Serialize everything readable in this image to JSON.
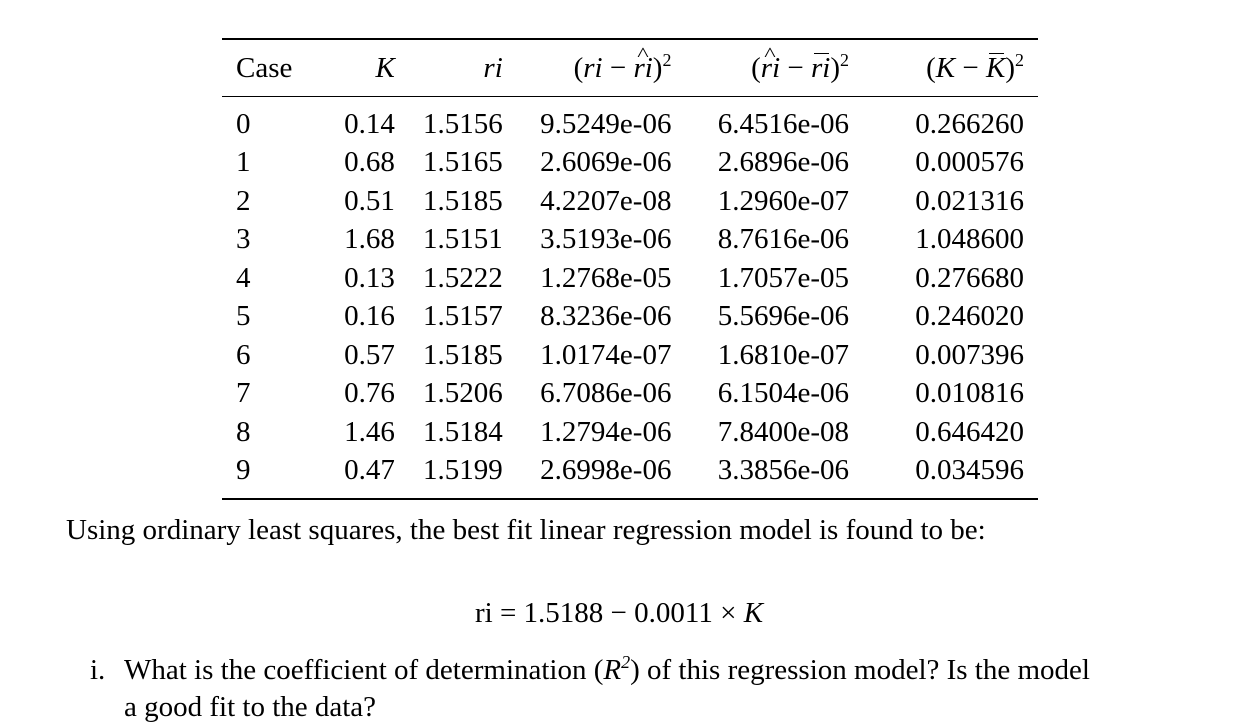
{
  "table": {
    "headers": {
      "case": "Case",
      "k": "K",
      "ri": "ri",
      "err1": "(ri − ri^)²",
      "err2": "(ri^ − ri¯)²",
      "err3": "(K − K¯)²"
    },
    "rows": [
      {
        "case": "0",
        "k": "0.14",
        "ri": "1.5156",
        "err1": "9.5249e-06",
        "err2": "6.4516e-06",
        "err3": "0.266260"
      },
      {
        "case": "1",
        "k": "0.68",
        "ri": "1.5165",
        "err1": "2.6069e-06",
        "err2": "2.6896e-06",
        "err3": "0.000576"
      },
      {
        "case": "2",
        "k": "0.51",
        "ri": "1.5185",
        "err1": "4.2207e-08",
        "err2": "1.2960e-07",
        "err3": "0.021316"
      },
      {
        "case": "3",
        "k": "1.68",
        "ri": "1.5151",
        "err1": "3.5193e-06",
        "err2": "8.7616e-06",
        "err3": "1.048600"
      },
      {
        "case": "4",
        "k": "0.13",
        "ri": "1.5222",
        "err1": "1.2768e-05",
        "err2": "1.7057e-05",
        "err3": "0.276680"
      },
      {
        "case": "5",
        "k": "0.16",
        "ri": "1.5157",
        "err1": "8.3236e-06",
        "err2": "5.5696e-06",
        "err3": "0.246020"
      },
      {
        "case": "6",
        "k": "0.57",
        "ri": "1.5185",
        "err1": "1.0174e-07",
        "err2": "1.6810e-07",
        "err3": "0.007396"
      },
      {
        "case": "7",
        "k": "0.76",
        "ri": "1.5206",
        "err1": "6.7086e-06",
        "err2": "6.1504e-06",
        "err3": "0.010816"
      },
      {
        "case": "8",
        "k": "1.46",
        "ri": "1.5184",
        "err1": "1.2794e-06",
        "err2": "7.8400e-08",
        "err3": "0.646420"
      },
      {
        "case": "9",
        "k": "0.47",
        "ri": "1.5199",
        "err1": "2.6998e-06",
        "err2": "3.3856e-06",
        "err3": "0.034596"
      }
    ]
  },
  "paragraph": "Using ordinary least squares, the best fit linear regression model is found to be:",
  "equation": {
    "lhs": "ri",
    "rhs": "= 1.5188 − 0.0011 × ",
    "var": "K"
  },
  "question": {
    "number": "i.",
    "line1": "What is the coefficient of determination (",
    "r2": "R²",
    "line1_end": ") of this regression model? Is the model",
    "line2": "a good fit to the data?"
  }
}
